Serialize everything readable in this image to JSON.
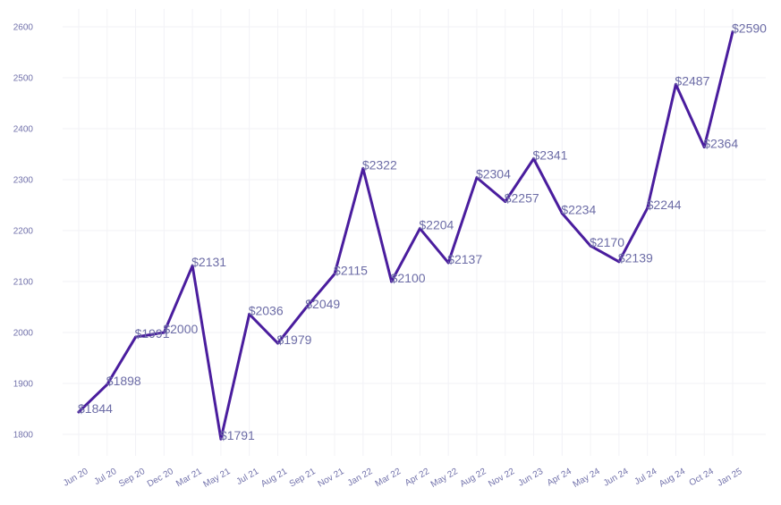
{
  "chart_data": {
    "type": "line",
    "categories": [
      "Jun 20",
      "Jul 20",
      "Sep 20",
      "Dec 20",
      "Mar 21",
      "May 21",
      "Jul 21",
      "Aug 21",
      "Sep 21",
      "Nov 21",
      "Jan 22",
      "Mar 22",
      "Apr 22",
      "May 22",
      "Aug 22",
      "Nov 22",
      "Jun 23",
      "Apr 24",
      "May 24",
      "Jun 24",
      "Jul 24",
      "Aug 24",
      "Oct 24",
      "Jan 25"
    ],
    "values": [
      1844,
      1898,
      1991,
      2000,
      2131,
      1791,
      2036,
      1979,
      2049,
      2115,
      2322,
      2100,
      2204,
      2137,
      2304,
      2257,
      2341,
      2234,
      2170,
      2139,
      2244,
      2487,
      2364,
      2590
    ],
    "data_labels": [
      "$1844",
      "$1898",
      "$1991",
      "$2000",
      "$2131",
      "$1791",
      "$2036",
      "$1979",
      "$2049",
      "$2115",
      "$2322",
      "$2100",
      "$2204",
      "$2137",
      "$2304",
      "$2257",
      "$2341",
      "$2234",
      "$2170",
      "$2139",
      "$2244",
      "$2487",
      "$2364",
      "$2590"
    ],
    "yticks": [
      1800,
      1900,
      2000,
      2100,
      2200,
      2300,
      2400,
      2500,
      2600
    ],
    "ylim": [
      1758,
      2635
    ],
    "grid": true,
    "colors": {
      "line": "#4a1d9e",
      "data_label": "#6c6ca6",
      "tick": "#7272ab",
      "grid": "#f2f2f6"
    }
  }
}
